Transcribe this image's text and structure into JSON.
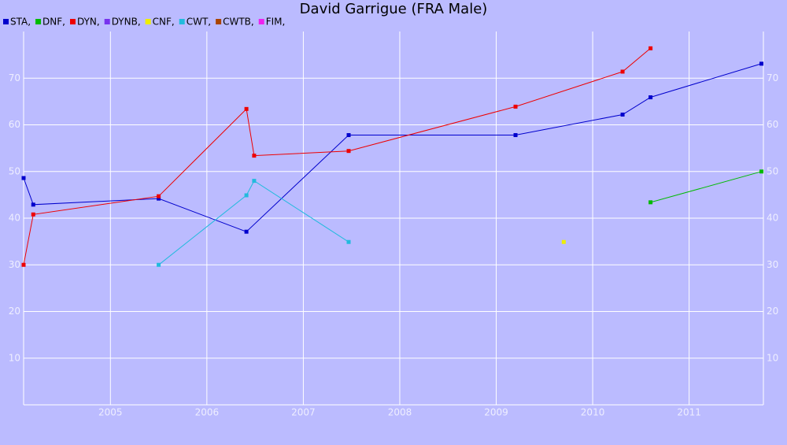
{
  "chart_data": {
    "type": "line",
    "title": "David Garrigue (FRA Male)",
    "background": "#bbbbff",
    "grid": true,
    "xlim": [
      2004.1,
      2011.77
    ],
    "xticks": [
      2005,
      2006,
      2007,
      2008,
      2009,
      2010,
      2011
    ],
    "ylim": [
      0,
      80
    ],
    "yticks": [
      10,
      20,
      30,
      40,
      50,
      60,
      70
    ],
    "series": [
      {
        "name": "STA,",
        "color": "#0000cc",
        "x": [
          2004.1,
          2004.2,
          2005.5,
          2006.41,
          2007.47,
          2009.2,
          2010.31,
          2010.6,
          2011.75
        ],
        "values": [
          48.6,
          42.9,
          44.2,
          37.1,
          57.8,
          57.8,
          62.2,
          65.9,
          73.1
        ]
      },
      {
        "name": "DNF,",
        "color": "#00bb00",
        "x": [
          2010.6,
          2011.75
        ],
        "values": [
          43.4,
          50.0
        ]
      },
      {
        "name": "DYN,",
        "color": "#ee0000",
        "x": [
          2004.1,
          2004.2,
          2005.5,
          2006.41,
          2006.49,
          2007.47,
          2009.2,
          2010.31,
          2010.6
        ],
        "values": [
          30.0,
          40.8,
          44.7,
          63.4,
          53.4,
          54.4,
          63.9,
          71.4,
          76.4
        ]
      },
      {
        "name": "DYNB,",
        "color": "#7733ee",
        "x": [],
        "values": []
      },
      {
        "name": "CNF,",
        "color": "#eeee00",
        "x": [
          2009.7
        ],
        "values": [
          34.9
        ]
      },
      {
        "name": "CWT,",
        "color": "#22bbdd",
        "x": [
          2005.5,
          2006.41,
          2006.49,
          2007.47
        ],
        "values": [
          30.0,
          44.9,
          48.0,
          34.9
        ]
      },
      {
        "name": "CWTB,",
        "color": "#aa4400",
        "x": [],
        "values": []
      },
      {
        "name": "FIM,",
        "color": "#ee22ee",
        "x": [],
        "values": []
      }
    ]
  }
}
